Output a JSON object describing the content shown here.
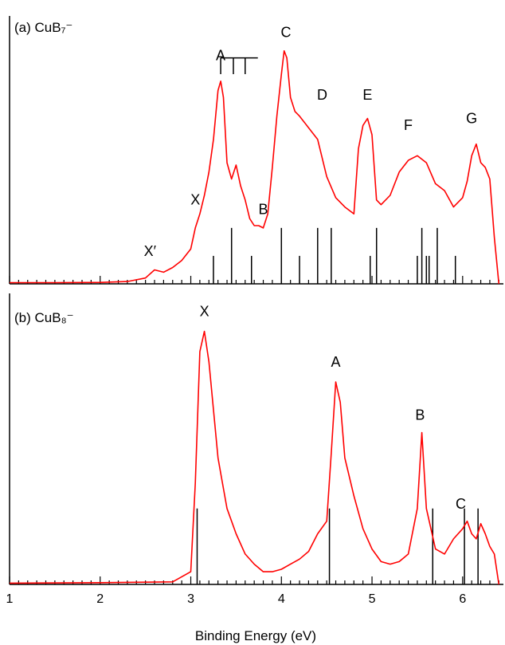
{
  "chart_data": [
    {
      "type": "line",
      "panel_label": "(a) CuB₇⁻",
      "series": [
        {
          "color": "#ff0000",
          "x": [
            1.0,
            1.5,
            2.0,
            2.3,
            2.5,
            2.6,
            2.7,
            2.8,
            2.9,
            3.0,
            3.05,
            3.1,
            3.15,
            3.2,
            3.25,
            3.3,
            3.33,
            3.36,
            3.4,
            3.45,
            3.5,
            3.55,
            3.6,
            3.65,
            3.7,
            3.75,
            3.8,
            3.85,
            3.9,
            3.95,
            4.0,
            4.03,
            4.06,
            4.1,
            4.15,
            4.2,
            4.3,
            4.4,
            4.5,
            4.6,
            4.7,
            4.8,
            4.85,
            4.9,
            4.95,
            5.0,
            5.05,
            5.1,
            5.2,
            5.3,
            5.4,
            5.5,
            5.6,
            5.7,
            5.8,
            5.9,
            6.0,
            6.05,
            6.1,
            6.15,
            6.2,
            6.25,
            6.3,
            6.35,
            6.4
          ],
          "y": [
            0.005,
            0.005,
            0.006,
            0.01,
            0.025,
            0.06,
            0.05,
            0.07,
            0.1,
            0.15,
            0.24,
            0.3,
            0.38,
            0.48,
            0.62,
            0.83,
            0.87,
            0.8,
            0.52,
            0.45,
            0.51,
            0.42,
            0.36,
            0.28,
            0.25,
            0.25,
            0.24,
            0.3,
            0.5,
            0.72,
            0.9,
            1.0,
            0.97,
            0.8,
            0.74,
            0.72,
            0.67,
            0.62,
            0.46,
            0.37,
            0.33,
            0.3,
            0.58,
            0.68,
            0.71,
            0.64,
            0.36,
            0.34,
            0.38,
            0.48,
            0.53,
            0.55,
            0.52,
            0.43,
            0.4,
            0.33,
            0.37,
            0.44,
            0.55,
            0.6,
            0.52,
            0.5,
            0.45,
            0.2,
            0.0
          ]
        }
      ],
      "stick_positions": [
        3.25,
        3.45,
        3.67,
        4.0,
        4.2,
        4.4,
        4.55,
        4.98,
        5.05,
        5.5,
        5.55,
        5.6,
        5.63,
        5.72,
        5.92
      ],
      "stick_heights": [
        0.12,
        0.24,
        0.12,
        0.24,
        0.12,
        0.24,
        0.24,
        0.12,
        0.24,
        0.12,
        0.24,
        0.12,
        0.12,
        0.24,
        0.12
      ],
      "peak_labels": [
        "X′",
        "X",
        "A",
        "B",
        "C",
        "D",
        "E",
        "F",
        "G"
      ],
      "peak_label_x": [
        2.55,
        3.05,
        3.33,
        3.8,
        4.05,
        4.45,
        4.95,
        5.4,
        6.1
      ],
      "peak_label_y": [
        0.12,
        0.34,
        0.96,
        0.3,
        1.06,
        0.79,
        0.79,
        0.66,
        0.69
      ],
      "vibrational_comb_x": [
        3.33,
        3.47,
        3.6,
        3.74
      ],
      "xlim": [
        1,
        6.45
      ],
      "ylim": [
        0,
        1.15
      ]
    },
    {
      "type": "line",
      "panel_label": "(b) CuB₈⁻",
      "series": [
        {
          "color": "#ff0000",
          "x": [
            1.0,
            2.0,
            2.8,
            3.0,
            3.05,
            3.1,
            3.15,
            3.2,
            3.3,
            3.35,
            3.4,
            3.5,
            3.6,
            3.7,
            3.8,
            3.9,
            4.0,
            4.1,
            4.2,
            4.3,
            4.4,
            4.5,
            4.55,
            4.6,
            4.65,
            4.7,
            4.8,
            4.9,
            5.0,
            5.1,
            5.2,
            5.3,
            5.4,
            5.5,
            5.55,
            5.6,
            5.7,
            5.8,
            5.9,
            6.0,
            6.05,
            6.1,
            6.15,
            6.2,
            6.25,
            6.3,
            6.35,
            6.4
          ],
          "y": [
            0.005,
            0.007,
            0.01,
            0.05,
            0.4,
            0.92,
            1.0,
            0.88,
            0.5,
            0.4,
            0.3,
            0.2,
            0.12,
            0.08,
            0.05,
            0.05,
            0.06,
            0.08,
            0.1,
            0.13,
            0.2,
            0.25,
            0.52,
            0.8,
            0.72,
            0.5,
            0.35,
            0.22,
            0.14,
            0.09,
            0.08,
            0.09,
            0.12,
            0.3,
            0.6,
            0.3,
            0.14,
            0.12,
            0.18,
            0.22,
            0.25,
            0.2,
            0.18,
            0.24,
            0.2,
            0.15,
            0.12,
            0.0
          ]
        }
      ],
      "stick_positions": [
        3.07,
        4.53,
        5.67,
        6.02,
        6.17
      ],
      "stick_heights": [
        0.3,
        0.3,
        0.3,
        0.3,
        0.3
      ],
      "peak_labels": [
        "X",
        "A",
        "B",
        "C"
      ],
      "peak_label_x": [
        3.15,
        4.6,
        5.53,
        5.98
      ],
      "peak_label_y": [
        1.06,
        0.86,
        0.65,
        0.3
      ],
      "xlim": [
        1,
        6.45
      ],
      "ylim": [
        0,
        1.15
      ]
    }
  ],
  "x_axis": {
    "title": "Binding Energy (eV)",
    "tick_labels": [
      "1",
      "2",
      "3",
      "4",
      "5",
      "6"
    ],
    "ticks": [
      1,
      2,
      3,
      4,
      5,
      6
    ]
  }
}
